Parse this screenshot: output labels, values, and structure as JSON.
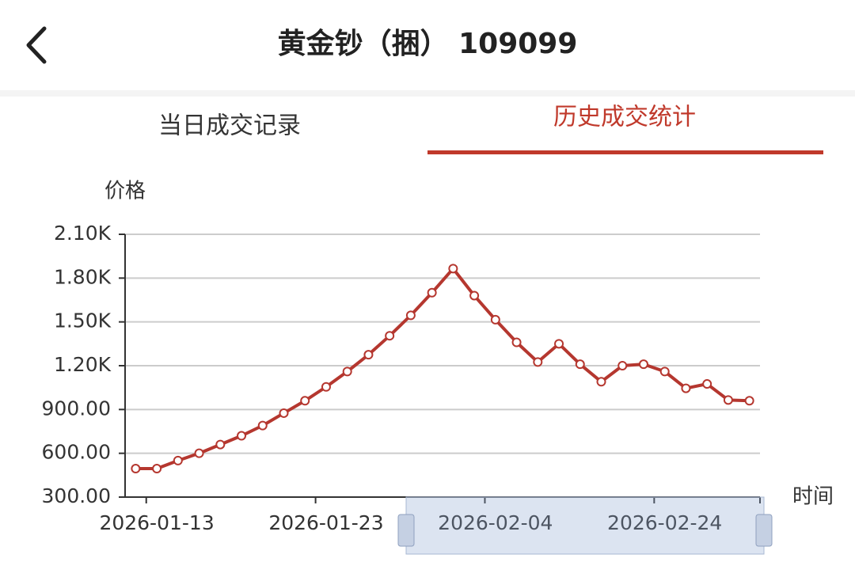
{
  "header": {
    "title": "黄金钞（捆） 109099"
  },
  "tabs": [
    {
      "label": "当日成交记录",
      "active": false
    },
    {
      "label": "历史成交统计",
      "active": true
    }
  ],
  "chart_data": {
    "type": "line",
    "y_label": "价格",
    "x_label": "时间",
    "categories": [
      null,
      "2026-01-13",
      null,
      null,
      null,
      null,
      null,
      null,
      null,
      "2026-01-23",
      null,
      null,
      null,
      null,
      null,
      null,
      null,
      "2026-02-04",
      null,
      null,
      null,
      null,
      null,
      null,
      null,
      "2026-02-24",
      null,
      null,
      null,
      null
    ],
    "values": [
      495,
      495,
      550,
      600,
      660,
      720,
      790,
      875,
      960,
      1055,
      1160,
      1275,
      1405,
      1545,
      1700,
      1865,
      1680,
      1515,
      1360,
      1225,
      1350,
      1210,
      1090,
      1200,
      1210,
      1160,
      1045,
      1075,
      965,
      960
    ],
    "color": "#b5372f",
    "ylim": [
      300,
      2100
    ],
    "yticks": [
      {
        "value": 300,
        "label": "300.00"
      },
      {
        "value": 600,
        "label": "600.00"
      },
      {
        "value": 900,
        "label": "900.00"
      },
      {
        "value": 1200,
        "label": "1.20K"
      },
      {
        "value": 1500,
        "label": "1.50K"
      },
      {
        "value": 1800,
        "label": "1.80K"
      },
      {
        "value": 2100,
        "label": "2.10K"
      }
    ],
    "grid": true
  }
}
